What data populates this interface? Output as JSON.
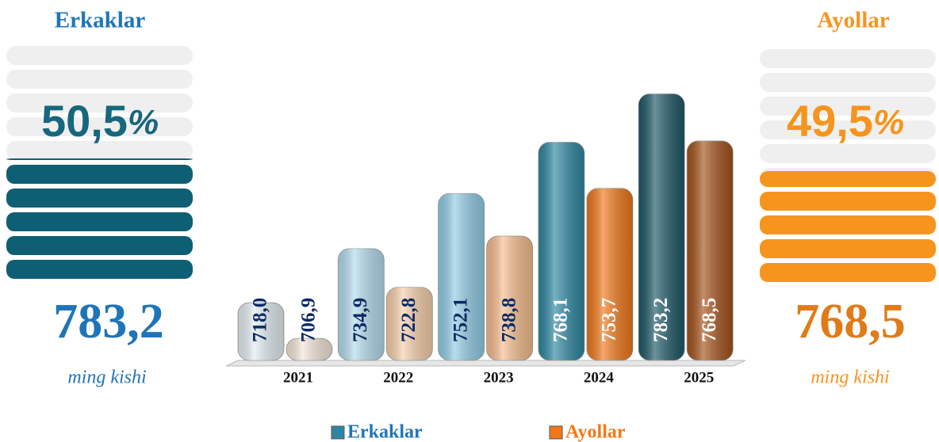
{
  "chart_data": {
    "type": "bar",
    "categories": [
      "2021",
      "2022",
      "2023",
      "2024",
      "2025"
    ],
    "series": [
      {
        "name": "Erkaklar",
        "color": "#1f75b8",
        "colors": [
          "#e3edf1",
          "#b4dced",
          "#92cde6",
          "#2e87a2",
          "#1e5866"
        ],
        "values": [
          718.0,
          734.9,
          752.1,
          768.1,
          783.2
        ],
        "value_labels": [
          "718,0",
          "734,9",
          "752,1",
          "768,1",
          "783,2"
        ]
      },
      {
        "name": "Ayollar",
        "color": "#f07a1a",
        "colors": [
          "#f3e6d8",
          "#f7d0ab",
          "#f6bd8c",
          "#f0781a",
          "#a4521a"
        ],
        "values": [
          706.9,
          722.8,
          738.8,
          753.7,
          768.5
        ],
        "value_labels": [
          "706,9",
          "722,8",
          "738,8",
          "753,7",
          "768,5"
        ]
      }
    ],
    "ylim": [
      700,
      790
    ]
  },
  "panels": {
    "left": {
      "title": "Erkaklar",
      "percent": "50,5",
      "percent_sign": "%",
      "value": "783,2",
      "unit": "ming kishi"
    },
    "right": {
      "title": "Ayollar",
      "percent": "49,5",
      "percent_sign": "%",
      "value": "768,5",
      "unit": "ming kishi"
    }
  }
}
